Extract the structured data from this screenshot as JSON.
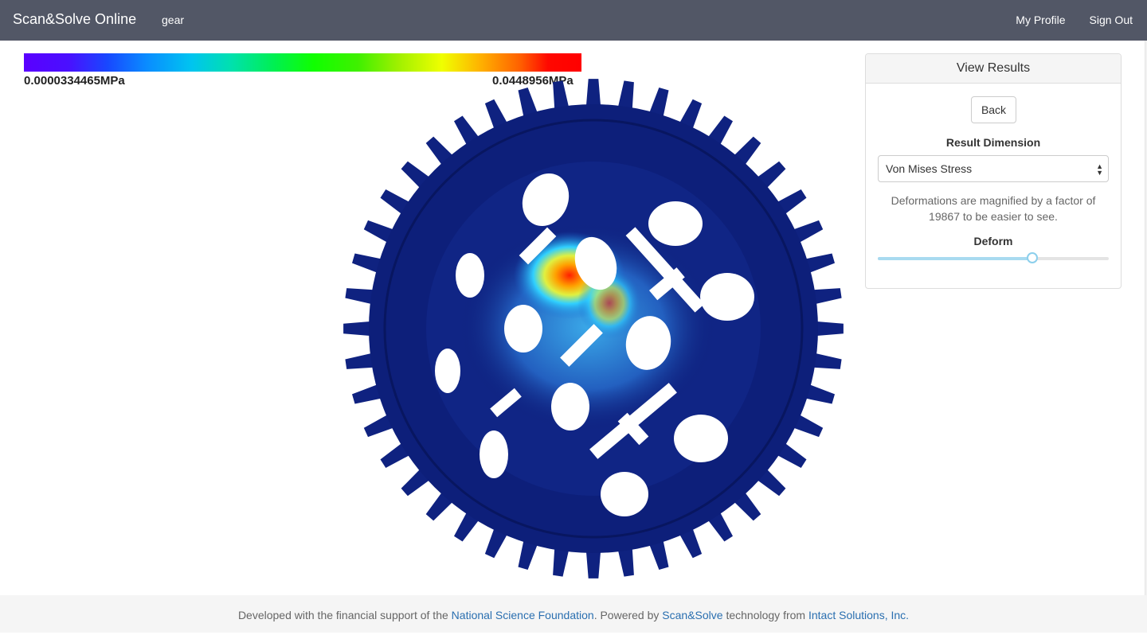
{
  "navbar": {
    "brand": "Scan&Solve Online",
    "project": "gear",
    "links": [
      "My Profile",
      "Sign Out"
    ]
  },
  "legend": {
    "min_label": "0.0000334465MPa",
    "max_label": "0.0448956MPa"
  },
  "panel": {
    "title": "View Results",
    "back_label": "Back",
    "result_dimension_label": "Result Dimension",
    "result_dimension_value": "Von Mises Stress",
    "deform_note": "Deformations are magnified by a factor of 19867 to be easier to see.",
    "deform_label": "Deform",
    "deform_level": 0.67
  },
  "footer": {
    "text1": "Developed with the financial support of the ",
    "link1": "National Science Foundation",
    "text2": ". Powered by ",
    "link2": "Scan&Solve",
    "text3": " technology from ",
    "link3": "Intact Solutions, Inc."
  },
  "colors": {
    "navbar": "#525766",
    "model": "#0d1f7a",
    "link": "#2a6fb0"
  }
}
